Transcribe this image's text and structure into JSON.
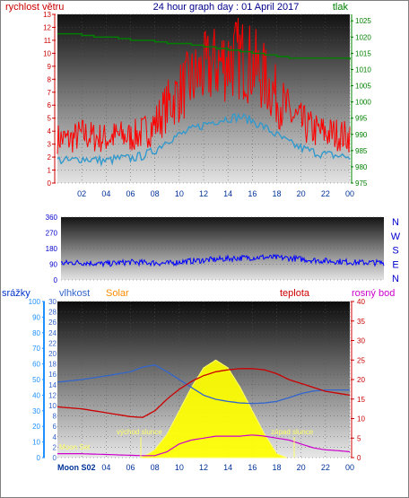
{
  "header": {
    "title": "24 hour graph day : 01 April 2017",
    "left_label": "rychlost větru",
    "right_label": "tlak"
  },
  "colors": {
    "wind": "#ff0000",
    "wind_avg": "#3399cc",
    "pressure": "#008000",
    "direction": "#0000ff",
    "rain": "#1e90ff",
    "humidity": "#3366cc",
    "solar": "#ffff00",
    "temperature": "#cc0000",
    "dewpoint": "#cc00cc"
  },
  "panel3": {
    "labels": {
      "rain": "srážky",
      "humidity": "vlhkost",
      "solar": "Solar",
      "temperature": "teplota",
      "dewpoint": "rosný bod"
    },
    "annotations": {
      "sunrise": "východ slunce",
      "sunset": "západ slunce",
      "moonset": "Moon Set"
    }
  },
  "footer": {
    "moon_label": "Moon S02"
  },
  "chart_data": [
    {
      "type": "line",
      "name": "wind and pressure",
      "x_tick_labels": [
        "02",
        "04",
        "06",
        "08",
        "10",
        "12",
        "14",
        "16",
        "18",
        "20",
        "22",
        "00"
      ],
      "y_left": {
        "label": "rychlost větru",
        "ticks": [
          0,
          1,
          2,
          3,
          4,
          5,
          6,
          7,
          8,
          9,
          10,
          11,
          12,
          13
        ],
        "ylim": [
          0,
          13
        ]
      },
      "y_right": {
        "label": "tlak",
        "ticks": [
          975,
          980,
          985,
          990,
          995,
          1000,
          1005,
          1010,
          1015,
          1020,
          1025
        ],
        "ylim": [
          975,
          1027
        ]
      },
      "series": [
        {
          "name": "wind gust",
          "axis": "left",
          "x": [
            0,
            1,
            2,
            3,
            4,
            5,
            6,
            7,
            8,
            9,
            10,
            11,
            12,
            13,
            14,
            15,
            16,
            17,
            18,
            19,
            20,
            21,
            22,
            23,
            24
          ],
          "values": [
            3.2,
            3.1,
            3.5,
            3.3,
            3.2,
            3.4,
            3.3,
            3.6,
            4.2,
            5.5,
            6.5,
            7.3,
            8.0,
            8.5,
            8.8,
            9.0,
            8.5,
            7.5,
            6.2,
            5.0,
            4.3,
            3.8,
            3.6,
            3.5,
            3.3
          ]
        },
        {
          "name": "wind average",
          "axis": "left",
          "x": [
            0,
            1,
            2,
            3,
            4,
            5,
            6,
            7,
            8,
            9,
            10,
            11,
            12,
            13,
            14,
            15,
            16,
            17,
            18,
            19,
            20,
            21,
            22,
            23,
            24
          ],
          "values": [
            1.8,
            1.7,
            1.9,
            1.8,
            1.7,
            1.9,
            1.9,
            2.1,
            2.5,
            3.3,
            3.7,
            4.1,
            4.5,
            4.8,
            5.0,
            5.1,
            4.8,
            4.3,
            3.7,
            3.1,
            2.7,
            2.4,
            2.2,
            2.1,
            2.0
          ]
        },
        {
          "name": "pressure",
          "axis": "right",
          "x": [
            0,
            1,
            2,
            3,
            4,
            5,
            6,
            7,
            8,
            9,
            10,
            11,
            12,
            13,
            14,
            15,
            16,
            17,
            18,
            19,
            20,
            21,
            22,
            23,
            24
          ],
          "values": [
            1021,
            1021,
            1020.5,
            1020,
            1020,
            1019.5,
            1019,
            1019,
            1018.5,
            1018,
            1018,
            1017.5,
            1017,
            1016.5,
            1016,
            1015.5,
            1015,
            1014.5,
            1014,
            1013.5,
            1013.5,
            1013.5,
            1013.5,
            1013.5,
            1013
          ]
        }
      ]
    },
    {
      "type": "scatter",
      "name": "wind direction",
      "y_ticks": [
        0,
        90,
        180,
        270,
        360
      ],
      "ylim": [
        0,
        360
      ],
      "right_labels": [
        "N",
        "W",
        "S",
        "E",
        "N"
      ],
      "series": [
        {
          "name": "direction",
          "x": [
            0,
            1,
            2,
            3,
            4,
            5,
            6,
            7,
            8,
            9,
            10,
            11,
            12,
            13,
            14,
            15,
            16,
            17,
            18,
            19,
            20,
            21,
            22,
            23,
            24
          ],
          "values": [
            95,
            100,
            98,
            92,
            96,
            102,
            100,
            98,
            95,
            105,
            110,
            115,
            120,
            125,
            128,
            130,
            128,
            125,
            118,
            112,
            108,
            105,
            100,
            100,
            98
          ]
        }
      ]
    },
    {
      "type": "line",
      "name": "rain humidity solar temperature dewpoint",
      "x_tick_labels": [
        "02",
        "04",
        "06",
        "08",
        "10",
        "12",
        "14",
        "16",
        "18",
        "20",
        "22",
        "00"
      ],
      "y_left_outer": {
        "label": "srážky",
        "ticks": [
          0,
          10,
          20,
          30,
          40,
          50,
          60,
          70,
          80,
          90,
          100
        ],
        "ylim": [
          0,
          100
        ]
      },
      "y_left_inner": {
        "label": "vlhkost",
        "ticks": [
          0,
          2,
          4,
          6,
          8,
          10,
          12,
          14,
          16,
          18,
          20,
          22,
          24,
          26,
          28,
          30
        ],
        "ylim": [
          0,
          30
        ]
      },
      "y_right": {
        "label": "teplota",
        "ticks": [
          0,
          5,
          10,
          15,
          20,
          25,
          30,
          35,
          40
        ],
        "ylim": [
          0,
          40
        ]
      },
      "series": [
        {
          "name": "humidity",
          "x": [
            0,
            2,
            4,
            6,
            7,
            8,
            9,
            10,
            11,
            12,
            13,
            14,
            15,
            16,
            17,
            18,
            19,
            20,
            21,
            22,
            23,
            24
          ],
          "values": [
            14.5,
            15.0,
            15.7,
            16.5,
            17.4,
            17.8,
            16.5,
            15.0,
            13.5,
            12.0,
            11.2,
            10.8,
            10.5,
            10.4,
            10.5,
            10.8,
            11.5,
            12.3,
            12.8,
            13.0,
            13.0,
            13.0
          ]
        },
        {
          "name": "temperature",
          "x": [
            0,
            2,
            4,
            6,
            7,
            8,
            9,
            10,
            11,
            12,
            13,
            14,
            15,
            16,
            17,
            18,
            19,
            20,
            21,
            22,
            23,
            24
          ],
          "values": [
            13.0,
            12.5,
            11.5,
            10.5,
            10.3,
            12.0,
            15.0,
            17.5,
            19.5,
            21.0,
            22.0,
            22.5,
            22.8,
            22.8,
            22.5,
            21.5,
            20.0,
            19.0,
            18.0,
            17.0,
            16.5,
            16.0
          ]
        },
        {
          "name": "dewpoint",
          "x": [
            0,
            2,
            4,
            6,
            7,
            8,
            9,
            10,
            11,
            12,
            13,
            14,
            15,
            16,
            17,
            18,
            19,
            20,
            21,
            22,
            23,
            24
          ],
          "values": [
            1.0,
            1.0,
            0.8,
            0.6,
            0.5,
            0.5,
            1.5,
            3.5,
            4.5,
            5.0,
            5.5,
            5.5,
            5.5,
            5.8,
            5.5,
            5.0,
            4.5,
            3.5,
            2.5,
            2.0,
            1.8,
            1.5
          ]
        },
        {
          "name": "solar",
          "x": [
            6.8,
            7.5,
            8,
            9,
            10,
            11,
            12,
            13,
            14,
            15,
            16,
            17,
            18,
            18.8
          ],
          "values": [
            0,
            1,
            2,
            6,
            12,
            18,
            23,
            25,
            23,
            18,
            12,
            6,
            1,
            0
          ]
        }
      ]
    }
  ]
}
